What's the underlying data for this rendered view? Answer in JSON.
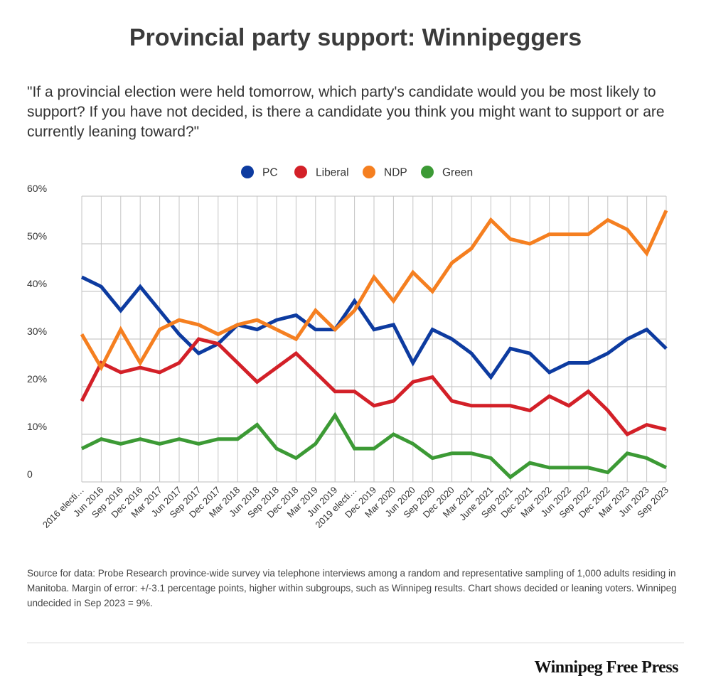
{
  "header": {
    "title": "Provincial party support: Winnipeggers",
    "subtitle": "\"If a provincial election were held tomorrow, which party's candidate would you be most likely to support? If you have not decided, is there a candidate you think you might want to support or are currently leaning toward?\""
  },
  "chart_data": {
    "type": "line",
    "title": "Provincial party support: Winnipeggers",
    "xlabel": "",
    "ylabel": "",
    "ylim": [
      0,
      60
    ],
    "yticks": [
      0,
      10,
      20,
      30,
      40,
      50,
      60
    ],
    "ytick_labels": [
      "0",
      "10%",
      "20%",
      "30%",
      "40%",
      "50%",
      "60%"
    ],
    "grid": true,
    "legend_position": "top-center",
    "categories": [
      "2016 electi…",
      "Jun 2016",
      "Sep 2016",
      "Dec 2016",
      "Mar 2017",
      "Jun 2017",
      "Sep 2017",
      "Dec 2017",
      "Mar 2018",
      "Jun 2018",
      "Sep 2018",
      "Dec 2018",
      "Mar 2019",
      "Jun 2019",
      "2019 electi…",
      "Dec 2019",
      "Mar 2020",
      "Jun 2020",
      "Sep 2020",
      "Dec 2020",
      "Mar 2021",
      "June 2021",
      "Sep 2021",
      "Dec 2021",
      "Mar 2022",
      "Jun 2022",
      "Sep 2022",
      "Dec 2022",
      "Mar 2023",
      "Jun 2023",
      "Sep 2023"
    ],
    "series": [
      {
        "name": "PC",
        "color": "#0d3ba0",
        "values": [
          43,
          41,
          36,
          41,
          36,
          31,
          27,
          29,
          33,
          32,
          34,
          35,
          32,
          32,
          38,
          32,
          33,
          25,
          32,
          30,
          27,
          22,
          28,
          27,
          23,
          25,
          25,
          27,
          30,
          32,
          28
        ]
      },
      {
        "name": "Liberal",
        "color": "#d32028",
        "values": [
          17,
          25,
          23,
          24,
          23,
          25,
          30,
          29,
          25,
          21,
          24,
          27,
          23,
          19,
          19,
          16,
          17,
          21,
          22,
          17,
          16,
          16,
          16,
          15,
          18,
          16,
          19,
          15,
          10,
          12,
          11
        ]
      },
      {
        "name": "NDP",
        "color": "#f57f20",
        "values": [
          31,
          24,
          32,
          25,
          32,
          34,
          33,
          31,
          33,
          34,
          32,
          30,
          36,
          32,
          36,
          43,
          38,
          44,
          40,
          46,
          49,
          55,
          51,
          50,
          52,
          52,
          52,
          55,
          53,
          48,
          57
        ]
      },
      {
        "name": "Green",
        "color": "#3c9a35",
        "values": [
          7,
          9,
          8,
          9,
          8,
          9,
          8,
          9,
          9,
          12,
          7,
          5,
          8,
          14,
          7,
          7,
          10,
          8,
          5,
          6,
          6,
          5,
          1,
          4,
          3,
          3,
          3,
          2,
          6,
          5,
          3
        ]
      }
    ]
  },
  "footer": {
    "source": "Source for data:  Probe Research province-wide survey via telephone interviews among a random and representative sampling of 1,000 adults residing in Manitoba. Margin of error: +/-3.1 percentage points, higher within subgroups, such as Winnipeg results. Chart shows decided or leaning voters. Winnipeg undecided in Sep 2023 = 9%.",
    "brand": "Winnipeg Free Press"
  }
}
